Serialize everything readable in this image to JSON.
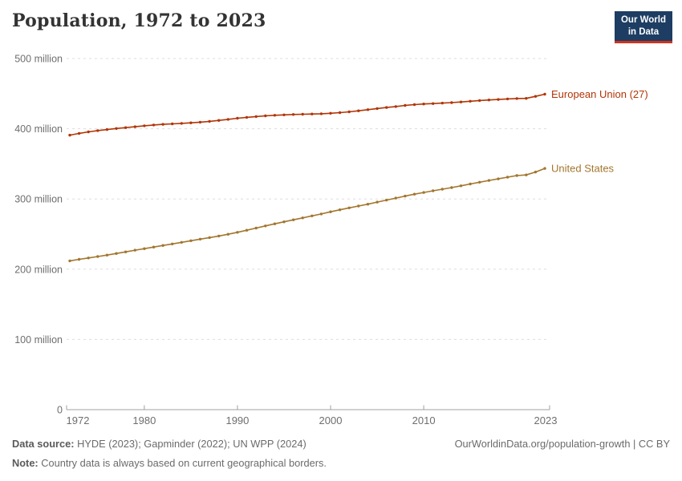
{
  "header": {
    "title": "Population, 1972 to 2023",
    "logo_line1": "Our World",
    "logo_line2": "in Data",
    "logo_bg": "#1D3D63",
    "logo_accent": "#D0311D"
  },
  "chart_data": {
    "type": "line",
    "title": "Population, 1972 to 2023",
    "values_unit": "million people",
    "grid": true,
    "legend_position": "labels-at-line-end",
    "ylim_millions": [
      0,
      500
    ],
    "yticks": [
      {
        "value_millions": 0,
        "label": "0"
      },
      {
        "value_millions": 100,
        "label": "100 million"
      },
      {
        "value_millions": 200,
        "label": "200 million"
      },
      {
        "value_millions": 300,
        "label": "300 million"
      },
      {
        "value_millions": 400,
        "label": "400 million"
      },
      {
        "value_millions": 500,
        "label": "500 million"
      }
    ],
    "xticks": [
      1972,
      1980,
      1990,
      2000,
      2010,
      2023
    ],
    "x": [
      1972,
      1973,
      1974,
      1975,
      1976,
      1977,
      1978,
      1979,
      1980,
      1981,
      1982,
      1983,
      1984,
      1985,
      1986,
      1987,
      1988,
      1989,
      1990,
      1991,
      1992,
      1993,
      1994,
      1995,
      1996,
      1997,
      1998,
      1999,
      2000,
      2001,
      2002,
      2003,
      2004,
      2005,
      2006,
      2007,
      2008,
      2009,
      2010,
      2011,
      2012,
      2013,
      2014,
      2015,
      2016,
      2017,
      2018,
      2019,
      2020,
      2021,
      2022,
      2023
    ],
    "series": [
      {
        "name": "European Union (27)",
        "color": "#B13507",
        "values_millions": [
          390.9,
          393.4,
          395.6,
          397.4,
          398.9,
          400.3,
          401.6,
          402.9,
          404.2,
          405.4,
          406.3,
          407.0,
          407.7,
          408.5,
          409.4,
          410.5,
          411.9,
          413.4,
          414.9,
          416.2,
          417.4,
          418.4,
          419.2,
          419.8,
          420.3,
          420.7,
          421.0,
          421.4,
          422.0,
          422.9,
          424.1,
          425.6,
          427.2,
          428.8,
          430.2,
          431.6,
          433.2,
          434.4,
          435.3,
          435.9,
          436.5,
          437.2,
          438.1,
          439.2,
          440.2,
          441.0,
          441.7,
          442.5,
          443.0,
          443.3,
          446.1,
          449.2
        ]
      },
      {
        "name": "United States",
        "color": "#A2762E",
        "values_millions": [
          211.9,
          214.0,
          216.0,
          218.0,
          220.1,
          222.4,
          224.7,
          227.0,
          229.2,
          231.5,
          233.8,
          236.0,
          238.2,
          240.5,
          242.8,
          245.0,
          247.3,
          249.8,
          252.5,
          255.5,
          258.6,
          261.6,
          264.6,
          267.5,
          270.3,
          273.1,
          275.9,
          278.7,
          281.7,
          284.6,
          287.3,
          289.9,
          292.6,
          295.5,
          298.4,
          301.3,
          304.1,
          306.8,
          309.3,
          311.6,
          313.9,
          316.2,
          318.7,
          321.3,
          323.9,
          326.4,
          328.7,
          331.0,
          333.3,
          334.3,
          338.3,
          343.5
        ]
      }
    ],
    "style": {
      "grid_color": "#DDDDDD",
      "axis_color": "#A0A0A0",
      "tick_label_color": "#6E6E6E"
    }
  },
  "footer": {
    "source_label": "Data source:",
    "source_text": "HYDE (2023); Gapminder (2022); UN WPP (2024)",
    "note_label": "Note:",
    "note_text": "Country data is always based on current geographical borders.",
    "link_text": "OurWorldinData.org/population-growth | CC BY"
  }
}
